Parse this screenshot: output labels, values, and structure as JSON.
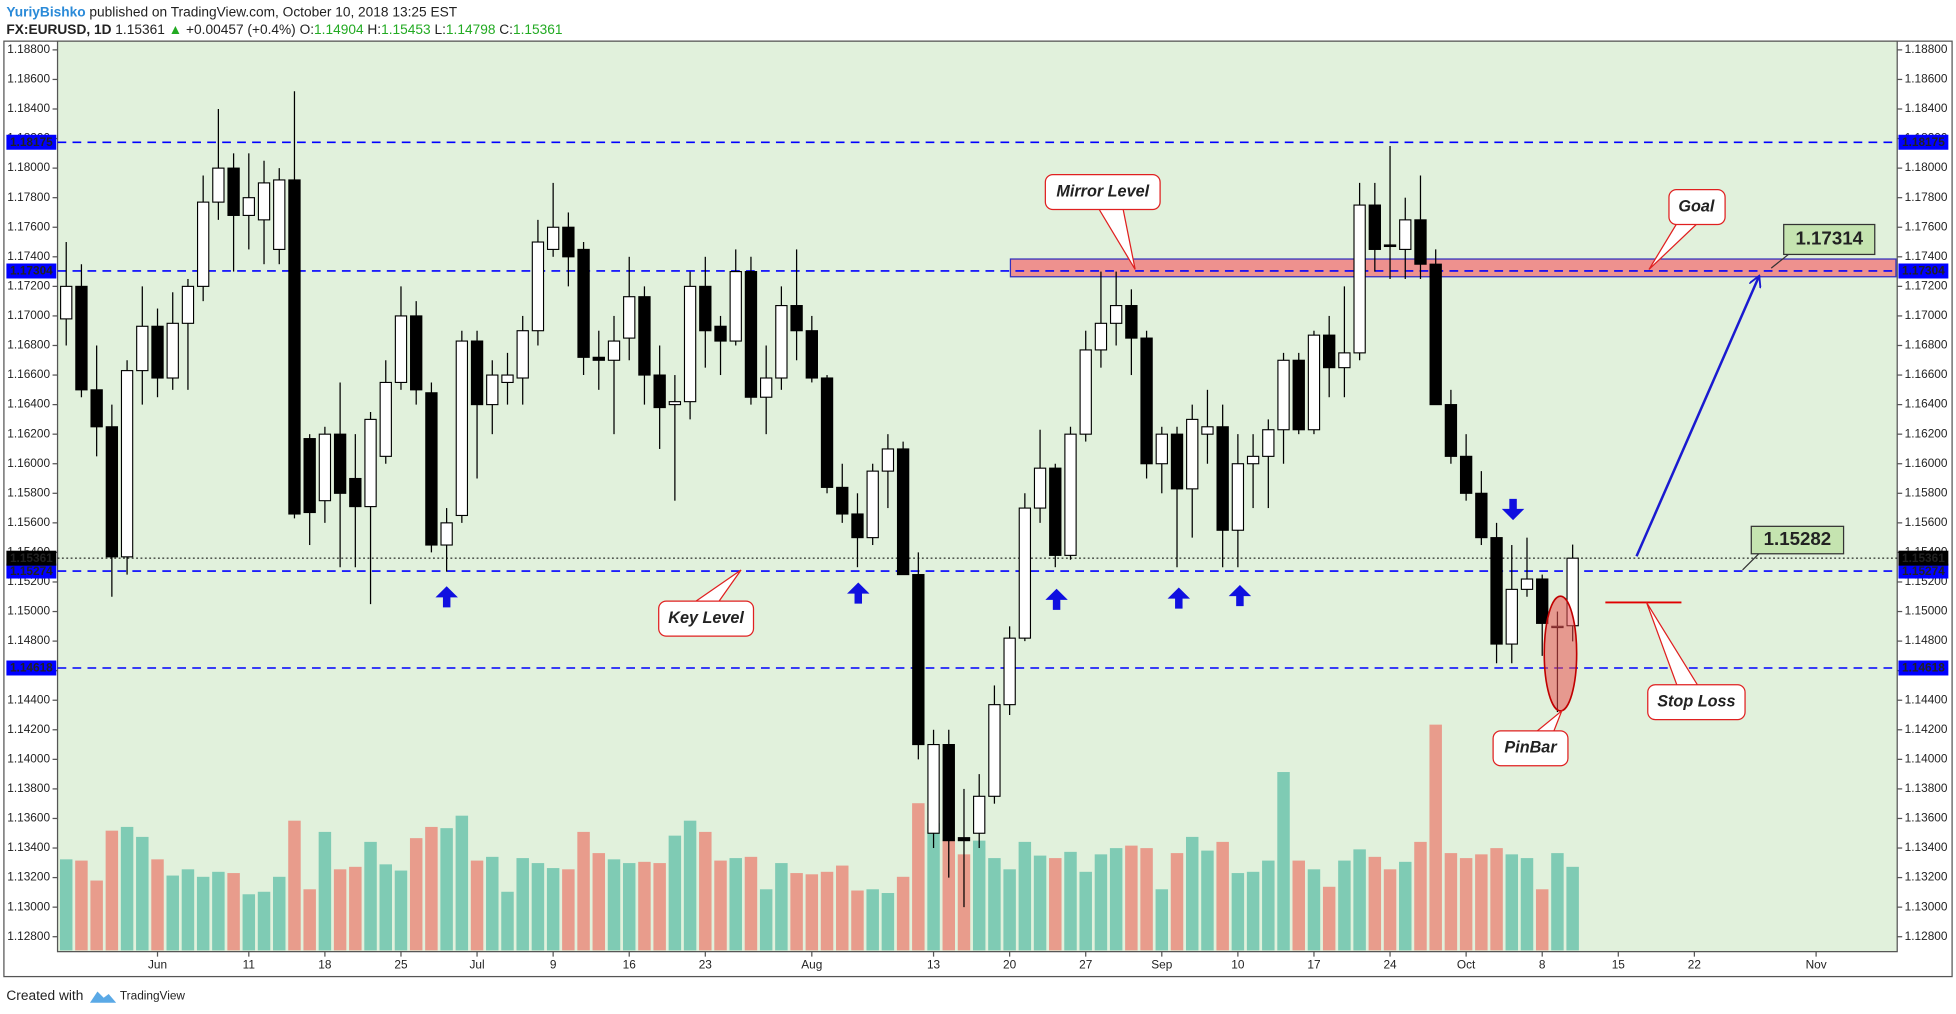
{
  "header": {
    "author": "YuriyBishko",
    "published": "published on TradingView.com, October 10, 2018 13:25 EST",
    "symbol": "FX:EURUSD, 1D",
    "last": 1.15361,
    "change_arrow": "▲",
    "change": "+0.00457 (+0.4%)",
    "ohlc": [
      {
        "label": "O:",
        "value": 1.14904
      },
      {
        "label": "H:",
        "value": 1.15453
      },
      {
        "label": "L:",
        "value": 1.14798
      },
      {
        "label": "C:",
        "value": 1.15361
      }
    ]
  },
  "chart_data": {
    "type": "candlestick",
    "xlim": [
      -0.57,
      120.33
    ],
    "xticks": [
      {
        "value": 6,
        "label": "Jun"
      },
      {
        "value": 12,
        "label": "11"
      },
      {
        "value": 17,
        "label": "18"
      },
      {
        "value": 22,
        "label": "25"
      },
      {
        "value": 27,
        "label": "Jul"
      },
      {
        "value": 32,
        "label": "9"
      },
      {
        "value": 37,
        "label": "16"
      },
      {
        "value": 42,
        "label": "23"
      },
      {
        "value": 49,
        "label": "Aug"
      },
      {
        "value": 57,
        "label": "13"
      },
      {
        "value": 62,
        "label": "20"
      },
      {
        "value": 67,
        "label": "27"
      },
      {
        "value": 72,
        "label": "Sep"
      },
      {
        "value": 77,
        "label": "10"
      },
      {
        "value": 82,
        "label": "17"
      },
      {
        "value": 87,
        "label": "24"
      },
      {
        "value": 92,
        "label": "Oct"
      },
      {
        "value": 97,
        "label": "8"
      },
      {
        "value": 102,
        "label": "15"
      },
      {
        "value": 107,
        "label": "22"
      },
      {
        "value": 115,
        "label": "Nov"
      }
    ],
    "ylim": [
      1.12699,
      1.18859
    ],
    "yticks": [
      {
        "value": 1.128,
        "label": "1.12800"
      },
      {
        "value": 1.13,
        "label": "1.13000"
      },
      {
        "value": 1.132,
        "label": "1.13200"
      },
      {
        "value": 1.134,
        "label": "1.13400"
      },
      {
        "value": 1.136,
        "label": "1.13600"
      },
      {
        "value": 1.138,
        "label": "1.13800"
      },
      {
        "value": 1.14,
        "label": "1.14000"
      },
      {
        "value": 1.142,
        "label": "1.14200"
      },
      {
        "value": 1.144,
        "label": "1.14400"
      },
      {
        "value": 1.146,
        "label": "1.14600"
      },
      {
        "value": 1.148,
        "label": "1.14800"
      },
      {
        "value": 1.15,
        "label": "1.15000"
      },
      {
        "value": 1.152,
        "label": "1.15200"
      },
      {
        "value": 1.154,
        "label": "1.15400"
      },
      {
        "value": 1.156,
        "label": "1.15600"
      },
      {
        "value": 1.158,
        "label": "1.15800"
      },
      {
        "value": 1.16,
        "label": "1.16000"
      },
      {
        "value": 1.162,
        "label": "1.16200"
      },
      {
        "value": 1.164,
        "label": "1.16400"
      },
      {
        "value": 1.166,
        "label": "1.16600"
      },
      {
        "value": 1.168,
        "label": "1.16800"
      },
      {
        "value": 1.17,
        "label": "1.17000"
      },
      {
        "value": 1.172,
        "label": "1.17200"
      },
      {
        "value": 1.174,
        "label": "1.17400"
      },
      {
        "value": 1.176,
        "label": "1.17600"
      },
      {
        "value": 1.178,
        "label": "1.17800"
      },
      {
        "value": 1.18,
        "label": "1.18000"
      },
      {
        "value": 1.182,
        "label": "1.18200"
      },
      {
        "value": 1.184,
        "label": "1.18400"
      },
      {
        "value": 1.186,
        "label": "1.18600"
      },
      {
        "value": 1.188,
        "label": "1.18800"
      }
    ],
    "open": [
      1.1698,
      1.172,
      1.165,
      1.1625,
      1.1537,
      1.1663,
      1.1693,
      1.1658,
      1.1695,
      1.172,
      1.1777,
      1.18,
      1.1768,
      1.1765,
      1.1745,
      1.1792,
      1.1617,
      1.1575,
      1.162,
      1.159,
      1.1571,
      1.1605,
      1.1655,
      1.17,
      1.1648,
      1.1545,
      1.1565,
      1.1683,
      1.164,
      1.1655,
      1.1658,
      1.169,
      1.1745,
      1.176,
      1.1745,
      1.1672,
      1.167,
      1.1685,
      1.1713,
      1.166,
      1.164,
      1.1642,
      1.172,
      1.1693,
      1.1683,
      1.173,
      1.1645,
      1.1658,
      1.1707,
      1.169,
      1.1658,
      1.1584,
      1.1566,
      1.155,
      1.1595,
      1.161,
      1.1525,
      1.135,
      1.141,
      1.1347,
      1.135,
      1.1375,
      1.1437,
      1.1482,
      1.157,
      1.1597,
      1.1538,
      1.162,
      1.1677,
      1.1695,
      1.1707,
      1.1685,
      1.16,
      1.162,
      1.1583,
      1.162,
      1.1625,
      1.1555,
      1.16,
      1.1605,
      1.1623,
      1.167,
      1.1623,
      1.1687,
      1.1665,
      1.1675,
      1.1775,
      1.1748,
      1.1745,
      1.1765,
      1.1735,
      1.164,
      1.1605,
      1.158,
      1.155,
      1.1478,
      1.1515,
      1.1522,
      1.149,
      1.14904
    ],
    "high": [
      1.175,
      1.1735,
      1.168,
      1.164,
      1.167,
      1.172,
      1.1705,
      1.1716,
      1.1725,
      1.1795,
      1.184,
      1.181,
      1.181,
      1.1805,
      1.18,
      1.1852,
      1.162,
      1.1625,
      1.1655,
      1.162,
      1.1635,
      1.167,
      1.172,
      1.171,
      1.1655,
      1.157,
      1.169,
      1.169,
      1.167,
      1.1675,
      1.17,
      1.1765,
      1.179,
      1.177,
      1.175,
      1.169,
      1.17,
      1.174,
      1.172,
      1.168,
      1.166,
      1.173,
      1.174,
      1.17,
      1.1745,
      1.174,
      1.168,
      1.172,
      1.1745,
      1.17,
      1.166,
      1.16,
      1.158,
      1.16,
      1.162,
      1.1615,
      1.154,
      1.142,
      1.142,
      1.138,
      1.139,
      1.145,
      1.149,
      1.158,
      1.1623,
      1.16,
      1.1625,
      1.169,
      1.173,
      1.173,
      1.1718,
      1.169,
      1.1625,
      1.1625,
      1.164,
      1.165,
      1.164,
      1.162,
      1.162,
      1.163,
      1.1675,
      1.1675,
      1.169,
      1.17,
      1.172,
      1.179,
      1.179,
      1.1815,
      1.178,
      1.1795,
      1.1745,
      1.165,
      1.162,
      1.1595,
      1.156,
      1.1545,
      1.155,
      1.1525,
      1.15,
      1.15453
    ],
    "low": [
      1.168,
      1.1645,
      1.1605,
      1.151,
      1.1525,
      1.164,
      1.1645,
      1.165,
      1.165,
      1.171,
      1.1765,
      1.173,
      1.1745,
      1.1735,
      1.1735,
      1.1563,
      1.1545,
      1.156,
      1.153,
      1.153,
      1.1505,
      1.16,
      1.165,
      1.164,
      1.154,
      1.1527,
      1.156,
      1.159,
      1.162,
      1.164,
      1.164,
      1.168,
      1.174,
      1.172,
      1.166,
      1.165,
      1.162,
      1.167,
      1.164,
      1.161,
      1.1575,
      1.163,
      1.1665,
      1.166,
      1.168,
      1.164,
      1.162,
      1.165,
      1.167,
      1.1655,
      1.158,
      1.156,
      1.153,
      1.1545,
      1.157,
      1.1525,
      1.14,
      1.134,
      1.132,
      1.13,
      1.134,
      1.137,
      1.143,
      1.148,
      1.156,
      1.153,
      1.1535,
      1.1615,
      1.1665,
      1.168,
      1.166,
      1.159,
      1.158,
      1.153,
      1.155,
      1.16,
      1.153,
      1.153,
      1.157,
      1.157,
      1.16,
      1.162,
      1.162,
      1.1645,
      1.1645,
      1.167,
      1.173,
      1.1725,
      1.1725,
      1.1725,
      1.164,
      1.16,
      1.1575,
      1.1545,
      1.1465,
      1.1465,
      1.151,
      1.147,
      1.1432,
      1.14798
    ],
    "close": [
      1.172,
      1.165,
      1.1625,
      1.1537,
      1.1663,
      1.1693,
      1.1658,
      1.1695,
      1.172,
      1.1777,
      1.18,
      1.1768,
      1.178,
      1.179,
      1.1792,
      1.1566,
      1.1567,
      1.162,
      1.158,
      1.1571,
      1.163,
      1.1655,
      1.17,
      1.165,
      1.1545,
      1.156,
      1.1683,
      1.164,
      1.166,
      1.166,
      1.169,
      1.175,
      1.176,
      1.174,
      1.1672,
      1.167,
      1.1683,
      1.1713,
      1.166,
      1.1638,
      1.1642,
      1.172,
      1.169,
      1.1683,
      1.173,
      1.1645,
      1.1658,
      1.1707,
      1.169,
      1.1658,
      1.1584,
      1.1566,
      1.155,
      1.1595,
      1.161,
      1.1525,
      1.141,
      1.141,
      1.1345,
      1.1345,
      1.1375,
      1.1437,
      1.1482,
      1.157,
      1.1597,
      1.1538,
      1.162,
      1.1677,
      1.1695,
      1.1707,
      1.1685,
      1.16,
      1.162,
      1.1583,
      1.163,
      1.1625,
      1.1555,
      1.16,
      1.1605,
      1.1623,
      1.167,
      1.1623,
      1.1687,
      1.1665,
      1.1675,
      1.1775,
      1.1745,
      1.1747,
      1.1765,
      1.1735,
      1.164,
      1.1605,
      1.158,
      1.155,
      1.1478,
      1.1515,
      1.1522,
      1.1492,
      1.149,
      1.15361
    ],
    "volume": [
      73,
      72,
      56,
      96,
      99,
      91,
      73,
      60,
      65,
      59,
      63,
      62,
      45,
      47,
      59,
      104,
      49,
      95,
      65,
      67,
      87,
      69,
      64,
      90,
      99,
      98,
      108,
      72,
      75,
      47,
      74,
      70,
      66,
      65,
      95,
      78,
      73,
      70,
      71,
      70,
      92,
      104,
      95,
      72,
      74,
      75,
      49,
      70,
      62,
      61,
      63,
      68,
      48,
      49,
      46,
      59,
      118,
      102,
      89,
      77,
      88,
      74,
      65,
      87,
      76,
      74,
      79,
      63,
      77,
      82,
      84,
      82,
      49,
      78,
      91,
      80,
      87,
      62,
      63,
      72,
      143,
      72,
      65,
      51,
      72,
      81,
      75,
      65,
      71,
      87,
      181,
      78,
      74,
      77,
      82,
      77,
      74,
      49,
      78,
      67
    ],
    "up_color": "#ffffff",
    "down_color": "#000000",
    "volume_up_color": "#7fcbb4",
    "volume_down_color": "#e89c8c",
    "levels": [
      {
        "value": 1.18175,
        "color": "#0000ff"
      },
      {
        "value": 1.17304,
        "color": "#0000ff"
      },
      {
        "value": 1.15274,
        "color": "#0000ff"
      },
      {
        "value": 1.14618,
        "color": "#0000ff"
      }
    ],
    "last_price": {
      "value": 1.15361,
      "color": "#000000"
    },
    "zone": {
      "low": 1.17265,
      "high": 1.17385,
      "color": "#f08080"
    },
    "price_marks": [
      1.17314,
      1.15282
    ],
    "annotations": [
      {
        "text": "Mirror Level"
      },
      {
        "text": "Goal"
      },
      {
        "text": "Key Level"
      },
      {
        "text": "PinBar"
      },
      {
        "text": "Stop Loss"
      }
    ]
  },
  "footer": {
    "created": "Created with",
    "brand": "TradingView"
  }
}
